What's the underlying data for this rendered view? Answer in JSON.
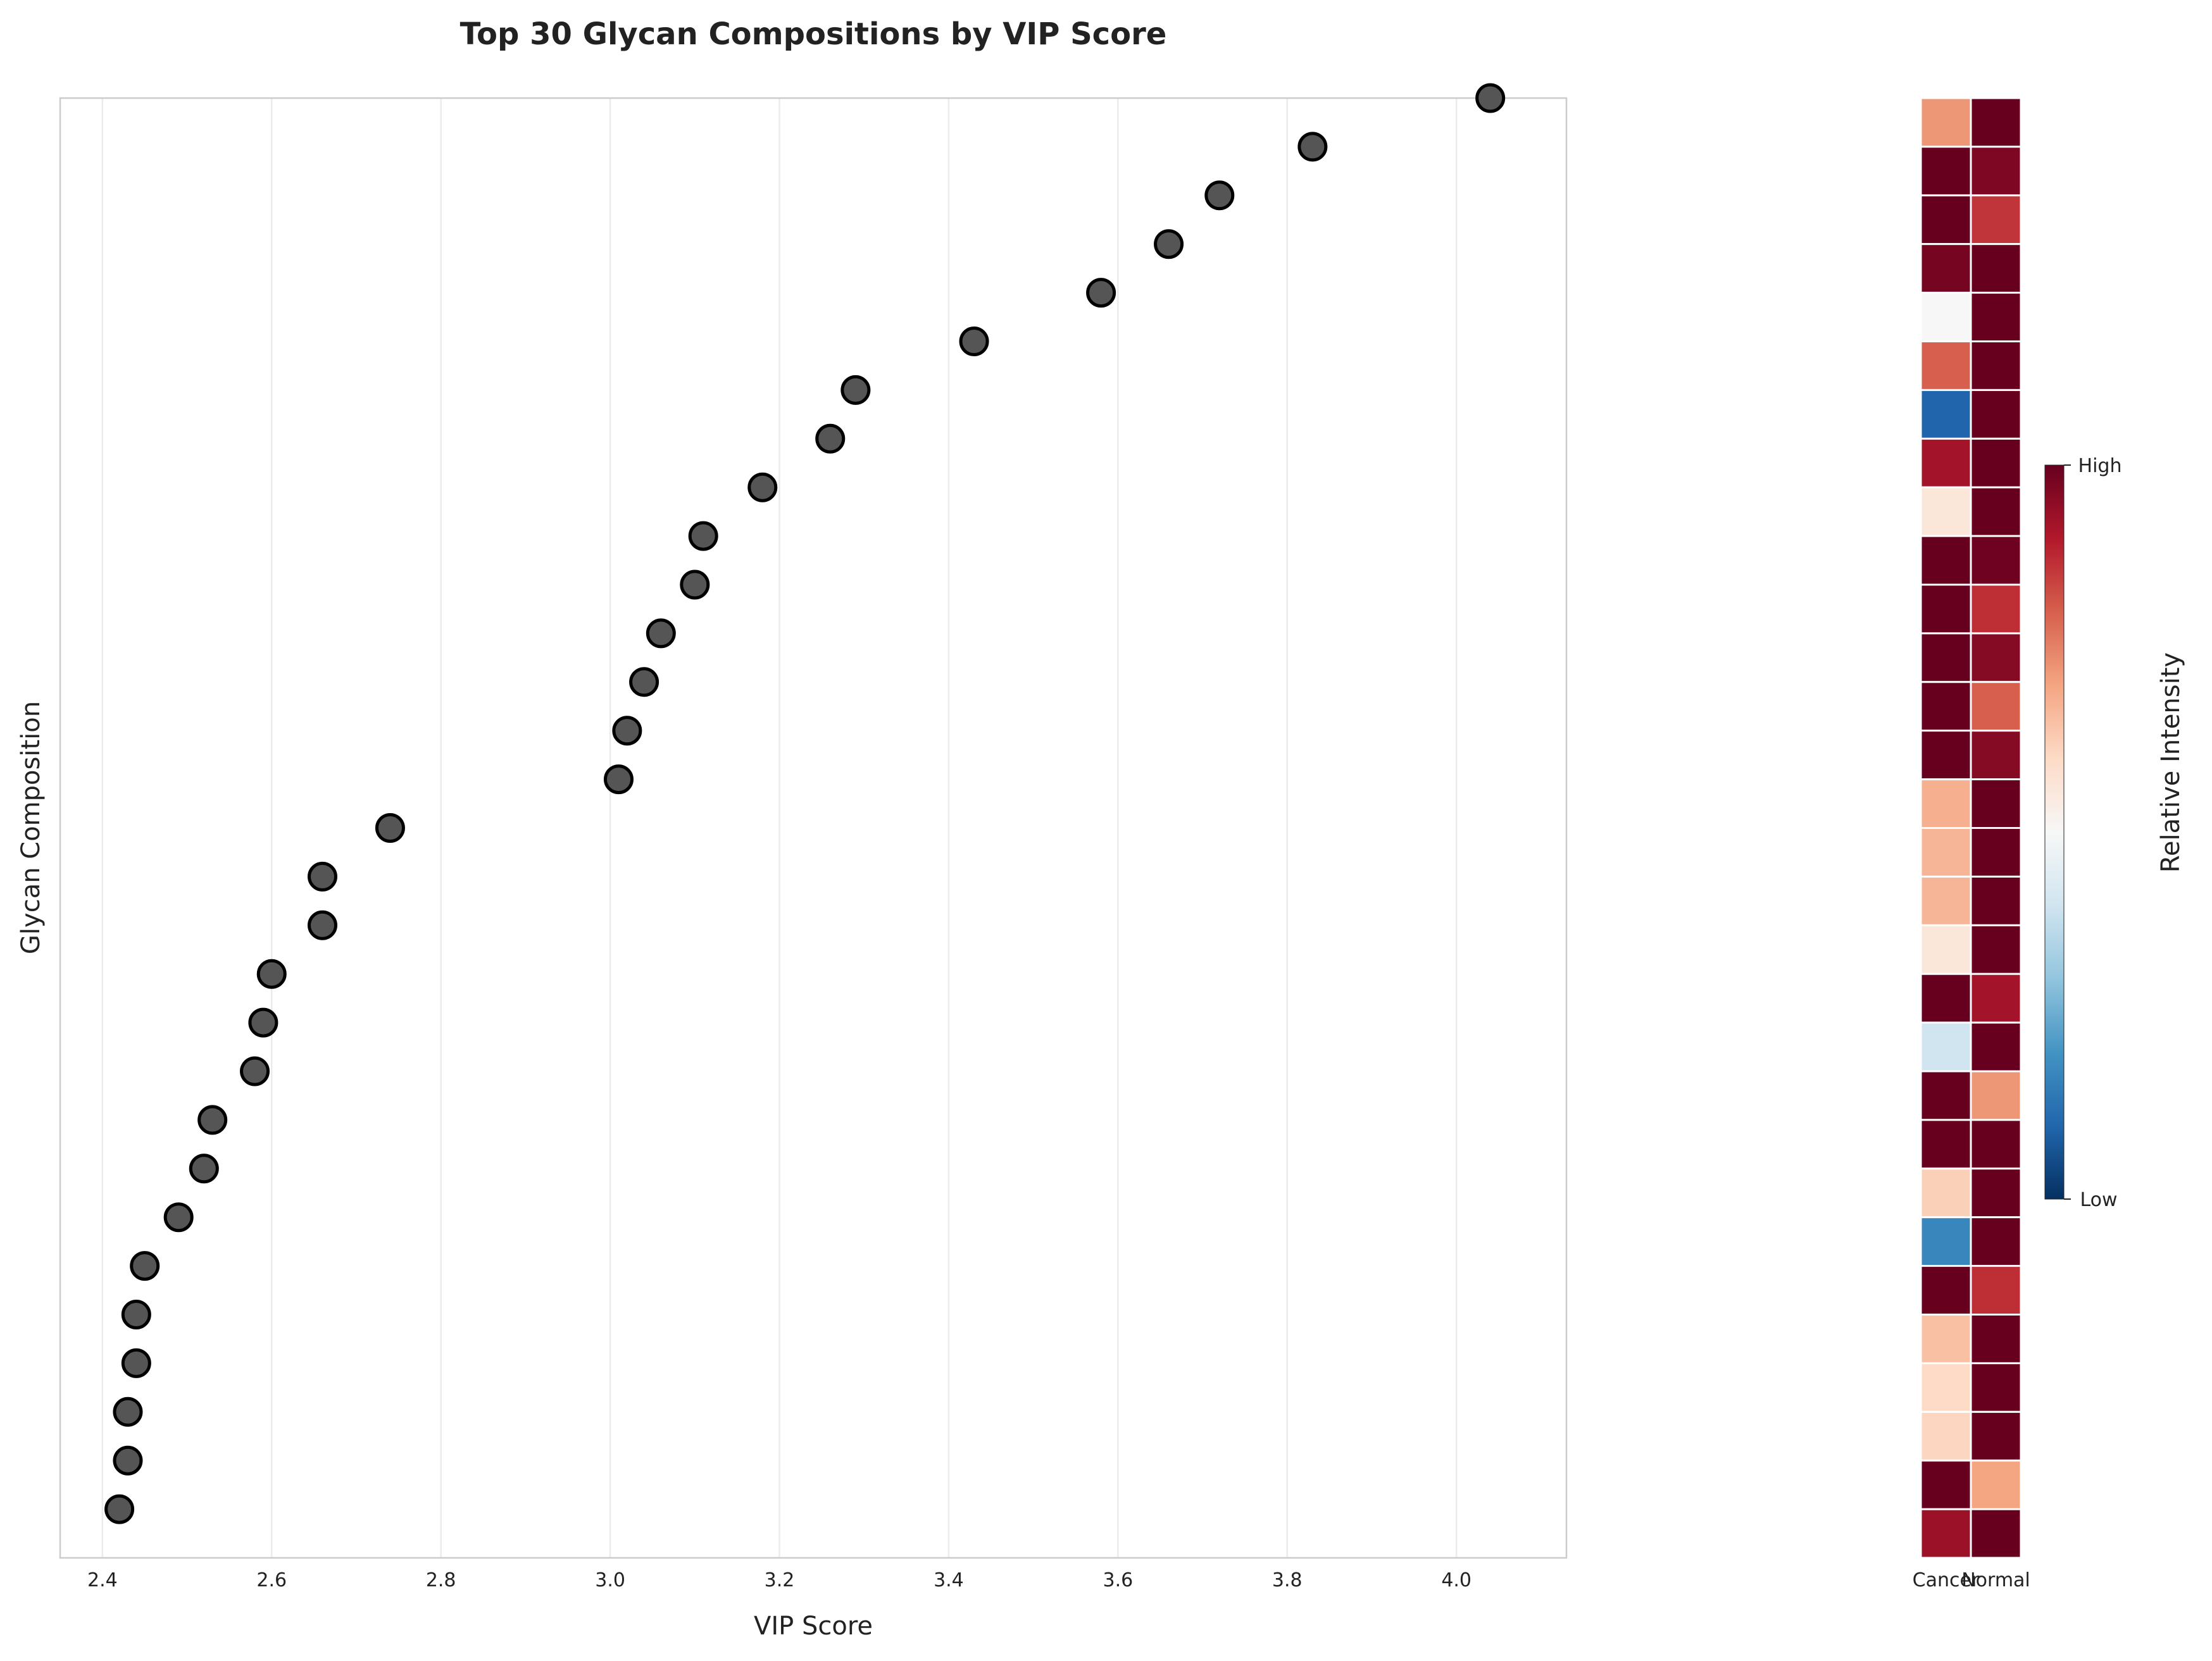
{
  "chart_data": [
    {
      "type": "scatter",
      "title": "Top 30 Glycan Compositions by VIP Score",
      "xlabel": "VIP Score",
      "ylabel": "Glycan Composition",
      "xlim": [
        2.35,
        4.13
      ],
      "x_ticks": [
        "2.4",
        "2.6",
        "2.8",
        "3.0",
        "3.2",
        "3.4",
        "3.6",
        "3.8",
        "4.0"
      ],
      "y_ticks": [],
      "grid": "vertical",
      "legend": "none",
      "marker_color": "#555555",
      "marker_edge_color": "#000000",
      "values": [
        4.04,
        3.83,
        3.72,
        3.66,
        3.58,
        3.43,
        3.29,
        3.26,
        3.18,
        3.11,
        3.1,
        3.06,
        3.04,
        3.02,
        3.01,
        2.74,
        2.66,
        2.66,
        2.6,
        2.59,
        2.58,
        2.53,
        2.52,
        2.49,
        2.45,
        2.44,
        2.44,
        2.43,
        2.43,
        2.42
      ]
    },
    {
      "type": "heatmap",
      "columns": [
        "Cancer",
        "Normal"
      ],
      "rows": 30,
      "values": [
        [
          0.72,
          1.0
        ],
        [
          1.0,
          0.97
        ],
        [
          1.0,
          0.86
        ],
        [
          0.98,
          1.0
        ],
        [
          0.5,
          1.0
        ],
        [
          0.8,
          1.0
        ],
        [
          0.1,
          1.0
        ],
        [
          0.92,
          1.0
        ],
        [
          0.56,
          1.0
        ],
        [
          1.0,
          0.99
        ],
        [
          1.0,
          0.87
        ],
        [
          1.0,
          0.96
        ],
        [
          1.0,
          0.8
        ],
        [
          1.0,
          0.96
        ],
        [
          0.68,
          1.0
        ],
        [
          0.67,
          1.0
        ],
        [
          0.67,
          1.0
        ],
        [
          0.56,
          1.0
        ],
        [
          1.0,
          0.92
        ],
        [
          0.4,
          1.0
        ],
        [
          1.0,
          0.72
        ],
        [
          1.0,
          1.0
        ],
        [
          0.62,
          1.0
        ],
        [
          0.17,
          1.0
        ],
        [
          1.0,
          0.87
        ],
        [
          0.65,
          1.0
        ],
        [
          0.6,
          1.0
        ],
        [
          0.61,
          1.0
        ],
        [
          1.0,
          0.7
        ],
        [
          0.93,
          1.0
        ]
      ],
      "colorbar": {
        "label": "Relative Intensity",
        "high_label": "High",
        "low_label": "Low",
        "colormap": "RdBu_r"
      }
    }
  ]
}
